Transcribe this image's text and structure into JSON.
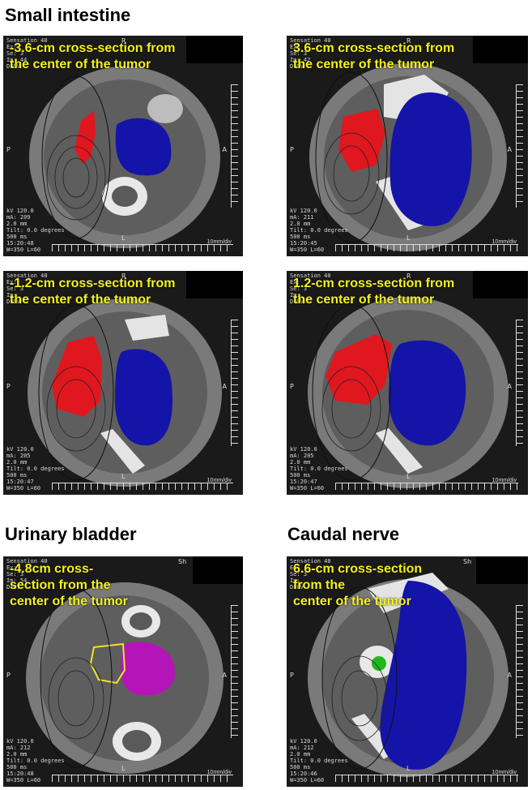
{
  "sections": {
    "small_intestine": "Small intestine",
    "urinary_bladder": "Urinary bladder",
    "caudal_nerve": "Caudal nerve"
  },
  "colors": {
    "tumor_red": "#e0171f",
    "organ_blue": "#1414a8",
    "bladder_magenta": "#b415b8",
    "nerve_green": "#1fb81a",
    "caption_yellow": "#f6f219",
    "contour_yellow": "#f0e02a"
  },
  "panels": [
    {
      "caption": "-3.6-cm cross-section from\nthe center of the tumor",
      "header": "Sensation 40\nEx:\nSe: 3\nIm: 44\nDFOV",
      "footer": "kV 120.0\nmA: 209\n2.0 mm\nTilt: 0.0 degrees\n500 ms\n15:20:48\nW=350 L=60",
      "scale": "10mm/div",
      "orient_top": "R",
      "orient_left": "P",
      "orient_right": "A",
      "orient_bottom": "L"
    },
    {
      "caption": "3.6-cm cross-section from\nthe center of the tumor",
      "header": "Sensation 40\nEx:\nSe: 3\nIm: 42\nDFOV",
      "footer": "kV 120.0\nmA: 211\n2.0 mm\nTilt: 0.0 degrees\n500 ms\n15:20:45\nW=350 L=60",
      "scale": "10mm/div",
      "orient_top": "R",
      "orient_left": "P",
      "orient_right": "A",
      "orient_bottom": "L"
    },
    {
      "caption": "-1.2-cm cross-section from\nthe center of the tumor",
      "header": "Sensation 40\nEx:\nSe: 3\nIm:\nDFOV",
      "footer": "kV 120.0\nmA: 205\n2.0 mm\nTilt: 0.0 degrees\n500 ms\n15:20:47\nW=350 L=60",
      "scale": "10mm/div",
      "orient_top": "R",
      "orient_left": "P",
      "orient_right": "A",
      "orient_bottom": "L"
    },
    {
      "caption": "1.2-cm cross-section from\nthe center of the tumor",
      "header": "Sensation 40\nEx:\nSe: 3\nIm:\nDFOV",
      "footer": "kV 120.0\nmA: 205\n2.0 mm\nTilt: 0.0 degrees\n500 ms\n15:20:47\nW=350 L=60",
      "scale": "10mm/div",
      "orient_top": "R",
      "orient_left": "P",
      "orient_right": "A",
      "orient_bottom": "L"
    },
    {
      "caption": "-4.8cm cross-\nsection from the\ncenter of the tumor",
      "header": "Sensation 40\nEx:\nSe: 3\nIm: 54\nDFOV",
      "footer": "kV 120.0\nmA: 212\n2.0 mm\nTilt: 0.0 degrees\n500 ms\n15:20:48\nW=350 L=60",
      "scale": "10mm/div",
      "orient_top": "Sh",
      "orient_left": "P",
      "orient_right": "A",
      "orient_bottom": "L"
    },
    {
      "caption": "6.6-cm cross-section\nfrom the\ncenter of the tumor",
      "header": "Sensation 40\nEx:\nSe: 3\nIm:\nDFOV",
      "footer": "kV 120.0\nmA: 212\n2.0 mm\nTilt: 0.0 degrees\n500 ms\n15:20:46\nW=350 L=60",
      "scale": "10mm/div",
      "orient_top": "Sh",
      "orient_left": "P",
      "orient_right": "A",
      "orient_bottom": "L"
    }
  ]
}
